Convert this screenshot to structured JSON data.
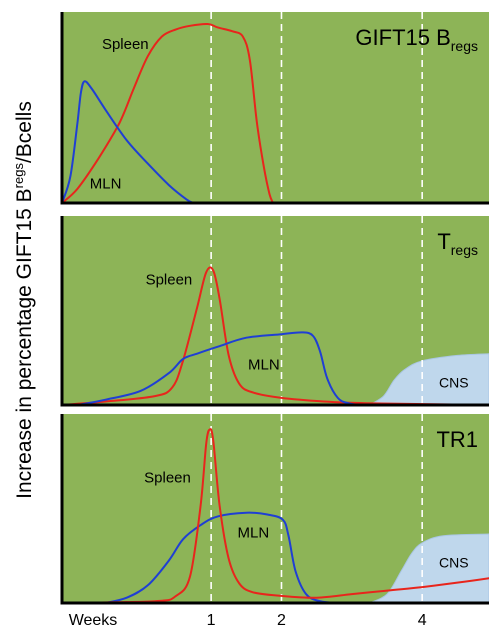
{
  "colors": {
    "panel_bg": "#8db457",
    "spleen": "#e8251c",
    "mln": "#1f3fd4",
    "cns_fill": "#bfd7ec",
    "cns_stroke": "#a9c6e3",
    "grid": "#ffffff",
    "axis": "#000000"
  },
  "y_axis_label": {
    "main": "Increase in percentage GIFT15 B",
    "sup": "regs",
    "tail": "/Bcells"
  },
  "x_axis": {
    "title": "Weeks",
    "ticks": [
      {
        "value": 1,
        "label": "1"
      },
      {
        "value": 2,
        "label": "2"
      },
      {
        "value": 4,
        "label": "4"
      }
    ],
    "range": [
      -1.12,
      4.95
    ]
  },
  "chart_data": [
    {
      "type": "line",
      "title": {
        "main": "GIFT15 B",
        "sub": "regs"
      },
      "ylim": [
        0,
        1
      ],
      "x_range": [
        -1.12,
        4.95
      ],
      "grid_x": [
        1,
        2,
        4
      ],
      "series": [
        {
          "name": "Spleen",
          "label_text": "Spleen",
          "label_at": [
            -0.22,
            0.86
          ],
          "color": "spleen",
          "kind": "line",
          "points": [
            [
              -1.12,
              0
            ],
            [
              -0.9,
              0.08
            ],
            [
              -0.6,
              0.25
            ],
            [
              -0.3,
              0.45
            ],
            [
              -0.1,
              0.64
            ],
            [
              0.1,
              0.82
            ],
            [
              0.3,
              0.93
            ],
            [
              0.5,
              0.97
            ],
            [
              0.7,
              0.99
            ],
            [
              0.95,
              1.0
            ],
            [
              1.1,
              0.98
            ],
            [
              1.3,
              0.96
            ],
            [
              1.45,
              0.93
            ],
            [
              1.55,
              0.8
            ],
            [
              1.65,
              0.45
            ],
            [
              1.75,
              0.2
            ],
            [
              1.83,
              0.05
            ],
            [
              1.88,
              0
            ]
          ]
        },
        {
          "name": "MLN",
          "label_text": "MLN",
          "label_at": [
            -0.5,
            0.08
          ],
          "color": "mln",
          "kind": "line",
          "points": [
            [
              -1.12,
              0
            ],
            [
              -1.0,
              0.15
            ],
            [
              -0.9,
              0.45
            ],
            [
              -0.85,
              0.62
            ],
            [
              -0.8,
              0.68
            ],
            [
              -0.7,
              0.64
            ],
            [
              -0.5,
              0.52
            ],
            [
              -0.2,
              0.35
            ],
            [
              0.1,
              0.22
            ],
            [
              0.4,
              0.1
            ],
            [
              0.65,
              0.02
            ],
            [
              0.75,
              0
            ]
          ]
        }
      ]
    },
    {
      "type": "line",
      "title": {
        "main": "T",
        "sub": "regs"
      },
      "ylim": [
        0,
        1
      ],
      "x_range": [
        -1.12,
        4.95
      ],
      "grid_x": [
        1,
        2,
        4
      ],
      "series": [
        {
          "name": "CNS",
          "label_text": "CNS",
          "label_at": [
            4.45,
            0.1
          ],
          "color": "cns",
          "kind": "area",
          "points": [
            [
              3.25,
              0
            ],
            [
              3.45,
              0.05
            ],
            [
              3.6,
              0.14
            ],
            [
              3.75,
              0.2
            ],
            [
              4.0,
              0.25
            ],
            [
              4.5,
              0.28
            ],
            [
              4.95,
              0.29
            ]
          ]
        },
        {
          "name": "Spleen",
          "label_text": "Spleen",
          "label_at": [
            0.4,
            0.68
          ],
          "color": "spleen",
          "kind": "line",
          "points": [
            [
              -1.12,
              0
            ],
            [
              -0.5,
              0.02
            ],
            [
              0.2,
              0.05
            ],
            [
              0.45,
              0.1
            ],
            [
              0.6,
              0.25
            ],
            [
              0.8,
              0.55
            ],
            [
              0.93,
              0.75
            ],
            [
              1.03,
              0.76
            ],
            [
              1.12,
              0.6
            ],
            [
              1.25,
              0.28
            ],
            [
              1.4,
              0.12
            ],
            [
              1.6,
              0.07
            ],
            [
              2.0,
              0.04
            ],
            [
              2.6,
              0.02
            ],
            [
              3.2,
              0.01
            ],
            [
              4.95,
              0
            ]
          ]
        },
        {
          "name": "MLN",
          "label_text": "MLN",
          "label_at": [
            1.75,
            0.2
          ],
          "color": "mln",
          "kind": "line",
          "points": [
            [
              -0.9,
              0
            ],
            [
              -0.5,
              0.03
            ],
            [
              0,
              0.08
            ],
            [
              0.4,
              0.18
            ],
            [
              0.6,
              0.26
            ],
            [
              0.8,
              0.29
            ],
            [
              1.1,
              0.33
            ],
            [
              1.5,
              0.38
            ],
            [
              2.0,
              0.4
            ],
            [
              2.3,
              0.41
            ],
            [
              2.45,
              0.39
            ],
            [
              2.55,
              0.3
            ],
            [
              2.65,
              0.15
            ],
            [
              2.8,
              0.04
            ],
            [
              2.95,
              0.01
            ],
            [
              3.1,
              0
            ]
          ]
        }
      ]
    },
    {
      "type": "line",
      "title": {
        "main": "TR1",
        "sub": ""
      },
      "ylim": [
        0,
        1
      ],
      "x_range": [
        -1.12,
        4.95
      ],
      "grid_x": [
        1,
        2,
        4
      ],
      "series": [
        {
          "name": "CNS",
          "label_text": "CNS",
          "label_at": [
            4.45,
            0.2
          ],
          "color": "cns",
          "kind": "area",
          "points": [
            [
              3.25,
              0
            ],
            [
              3.5,
              0.05
            ],
            [
              3.7,
              0.18
            ],
            [
              3.85,
              0.28
            ],
            [
              4.0,
              0.34
            ],
            [
              4.3,
              0.38
            ],
            [
              4.95,
              0.39
            ]
          ]
        },
        {
          "name": "MLN",
          "label_text": "MLN",
          "label_at": [
            1.6,
            0.37
          ],
          "color": "mln",
          "kind": "line",
          "points": [
            [
              -0.5,
              0
            ],
            [
              -0.2,
              0.03
            ],
            [
              0.1,
              0.1
            ],
            [
              0.4,
              0.24
            ],
            [
              0.6,
              0.36
            ],
            [
              0.85,
              0.44
            ],
            [
              1.1,
              0.49
            ],
            [
              1.5,
              0.51
            ],
            [
              1.8,
              0.5
            ],
            [
              2.02,
              0.47
            ],
            [
              2.1,
              0.38
            ],
            [
              2.2,
              0.18
            ],
            [
              2.35,
              0.05
            ],
            [
              2.55,
              0.01
            ],
            [
              2.8,
              0
            ]
          ]
        },
        {
          "name": "Spleen",
          "label_text": "Spleen",
          "label_at": [
            0.38,
            0.68
          ],
          "color": "spleen",
          "kind": "line",
          "points": [
            [
              -1.12,
              0
            ],
            [
              0.2,
              0.01
            ],
            [
              0.5,
              0.04
            ],
            [
              0.7,
              0.15
            ],
            [
              0.85,
              0.55
            ],
            [
              0.93,
              0.9
            ],
            [
              0.98,
              0.98
            ],
            [
              1.03,
              0.92
            ],
            [
              1.12,
              0.55
            ],
            [
              1.25,
              0.25
            ],
            [
              1.4,
              0.11
            ],
            [
              1.6,
              0.06
            ],
            [
              2.0,
              0.04
            ],
            [
              2.5,
              0.03
            ],
            [
              3.0,
              0.05
            ],
            [
              3.5,
              0.07
            ],
            [
              4.0,
              0.09
            ],
            [
              4.5,
              0.115
            ],
            [
              4.95,
              0.14
            ]
          ]
        }
      ]
    }
  ]
}
